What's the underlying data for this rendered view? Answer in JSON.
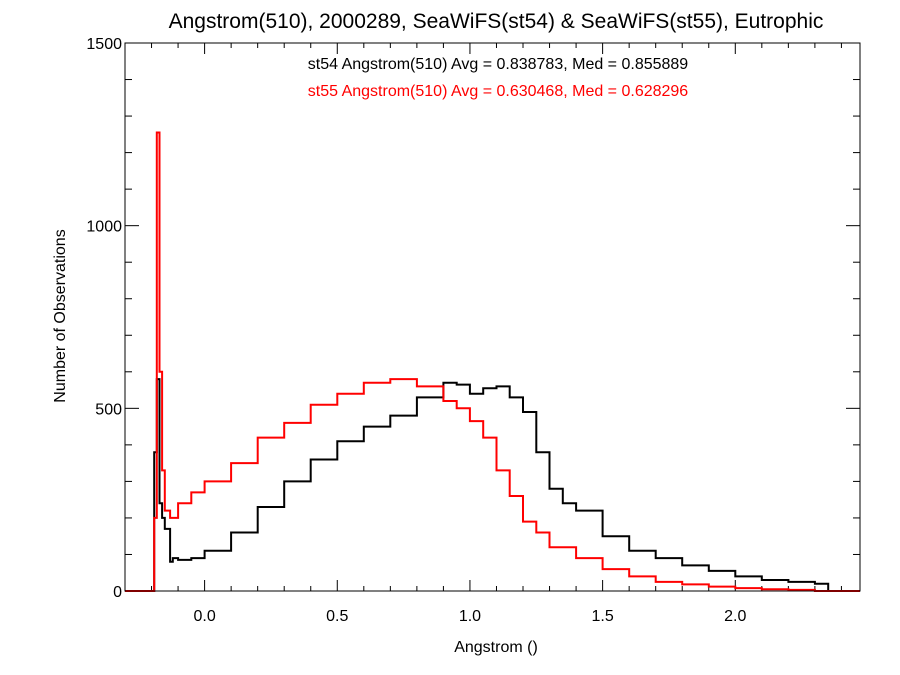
{
  "chart_data": {
    "type": "line",
    "style": "step-histogram",
    "title": "Angstrom(510), 2000289, SeaWiFS(st54) & SeaWiFS(st55), Eutrophic",
    "xlabel": "Angstrom ()",
    "ylabel": "Number of Observations",
    "xlim": [
      -0.3,
      2.47
    ],
    "ylim": [
      0,
      1500
    ],
    "x_ticks": [
      0.0,
      0.5,
      1.0,
      1.5,
      2.0
    ],
    "x_tick_labels": [
      "0.0",
      "0.5",
      "1.0",
      "1.5",
      "2.0"
    ],
    "y_ticks": [
      0,
      500,
      1000,
      1500
    ],
    "y_tick_labels": [
      "0",
      "500",
      "1000",
      "1500"
    ],
    "grid": false,
    "annotations": [
      {
        "text": "st54 Angstrom(510) Avg = 0.838783, Med = 0.855889",
        "color": "#000000"
      },
      {
        "text": "st55 Angstrom(510) Avg = 0.630468, Med = 0.628296",
        "color": "#ff0000"
      }
    ],
    "series": [
      {
        "color": "#000000",
        "x": [
          -0.3,
          -0.2,
          -0.19,
          -0.18,
          -0.17,
          -0.16,
          -0.15,
          -0.13,
          -0.12,
          -0.1,
          -0.05,
          0.0,
          0.1,
          0.2,
          0.3,
          0.4,
          0.5,
          0.6,
          0.7,
          0.8,
          0.9,
          0.95,
          1.0,
          1.05,
          1.1,
          1.15,
          1.2,
          1.25,
          1.3,
          1.35,
          1.4,
          1.5,
          1.6,
          1.7,
          1.8,
          1.9,
          2.0,
          2.1,
          2.2,
          2.3,
          2.35,
          2.47
        ],
        "values": [
          0,
          0,
          380,
          580,
          240,
          200,
          170,
          80,
          90,
          85,
          90,
          110,
          160,
          230,
          300,
          360,
          410,
          450,
          480,
          530,
          570,
          565,
          540,
          555,
          560,
          530,
          490,
          380,
          280,
          240,
          220,
          150,
          110,
          90,
          70,
          55,
          40,
          30,
          25,
          20,
          0,
          0
        ]
      },
      {
        "color": "#ff0000",
        "x": [
          -0.3,
          -0.2,
          -0.19,
          -0.18,
          -0.17,
          -0.16,
          -0.15,
          -0.13,
          -0.1,
          -0.05,
          0.0,
          0.1,
          0.2,
          0.3,
          0.4,
          0.5,
          0.6,
          0.7,
          0.8,
          0.9,
          0.95,
          1.0,
          1.05,
          1.1,
          1.15,
          1.2,
          1.25,
          1.3,
          1.4,
          1.5,
          1.6,
          1.7,
          1.8,
          1.9,
          2.0,
          2.1,
          2.2,
          2.3,
          2.35,
          2.47
        ],
        "values": [
          0,
          0,
          200,
          1255,
          600,
          330,
          220,
          200,
          240,
          270,
          300,
          350,
          420,
          460,
          510,
          540,
          570,
          580,
          560,
          520,
          500,
          465,
          420,
          330,
          260,
          190,
          160,
          120,
          90,
          60,
          40,
          25,
          18,
          12,
          8,
          5,
          3,
          0,
          0,
          0
        ]
      }
    ]
  }
}
